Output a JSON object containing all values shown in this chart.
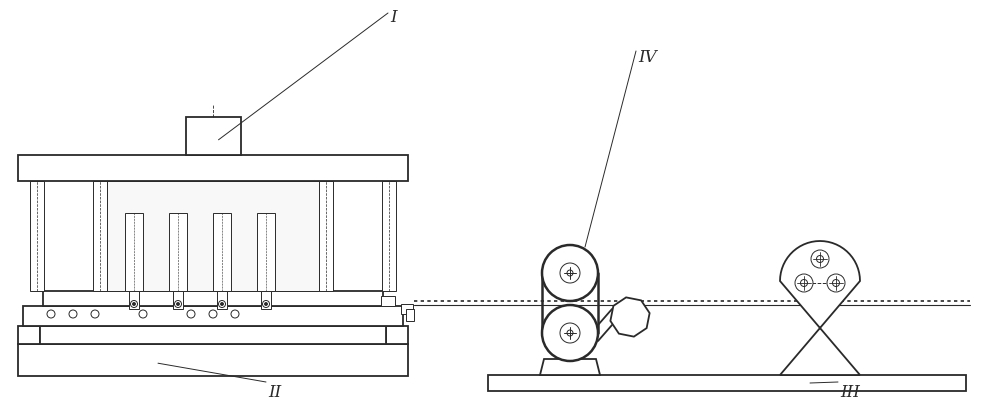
{
  "bg_color": "#ffffff",
  "lc": "#2a2a2a",
  "lw_thin": 0.7,
  "lw_med": 1.3,
  "lw_thick": 1.8,
  "label_I": "I",
  "label_II": "II",
  "label_III": "III",
  "label_IV": "IV",
  "figsize": [
    10.0,
    4.04
  ],
  "dpi": 100
}
